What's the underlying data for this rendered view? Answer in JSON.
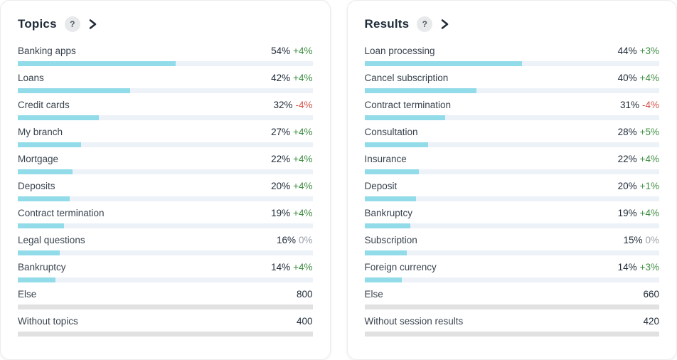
{
  "colors": {
    "title_text": "#1f2b38",
    "label_text": "#39434e",
    "value_text": "#1f2b38",
    "positive": "#3f8e43",
    "negative": "#d5544a",
    "neutral": "#9aa1a8",
    "bar_fill": "#92dbe9",
    "bar_track": "#edf2f9",
    "bar_gray": "#e1e1e1",
    "help_bg": "#e7e9eb",
    "help_text": "#555b61",
    "card_bg": "#ffffff",
    "card_border": "#ececec"
  },
  "icons": {
    "help": "?",
    "chevron_right": "chevron-right-icon"
  },
  "panels": [
    {
      "title": "Topics",
      "help_label": "?",
      "items": [
        {
          "label": "Banking apps",
          "value": "54%",
          "change": "+4%",
          "bar": 53.5
        },
        {
          "label": "Loans",
          "value": "42%",
          "change": "+4%",
          "bar": 38.0
        },
        {
          "label": "Credit cards",
          "value": "32%",
          "change": "-4%",
          "bar": 27.5
        },
        {
          "label": "My branch",
          "value": "27%",
          "change": "+4%",
          "bar": 21.5
        },
        {
          "label": "Mortgage",
          "value": "22%",
          "change": "+4%",
          "bar": 18.5
        },
        {
          "label": "Deposits",
          "value": "20%",
          "change": "+4%",
          "bar": 17.5
        },
        {
          "label": "Contract termination",
          "value": "19%",
          "change": "+4%",
          "bar": 15.6
        },
        {
          "label": "Legal questions",
          "value": "16%",
          "change": "0%",
          "bar": 14.3
        },
        {
          "label": "Bankruptcy",
          "value": "14%",
          "change": "+4%",
          "bar": 12.7
        },
        {
          "label": "Else",
          "value": "800",
          "change": "",
          "bar": 100,
          "kind": "gray"
        },
        {
          "label": "Without topics",
          "value": "400",
          "change": "",
          "bar": 100,
          "kind": "gray"
        }
      ]
    },
    {
      "title": "Results",
      "help_label": "?",
      "items": [
        {
          "label": "Loan processing",
          "value": "44%",
          "change": "+3%",
          "bar": 53.5
        },
        {
          "label": "Cancel subscription",
          "value": "40%",
          "change": "+4%",
          "bar": 38.0
        },
        {
          "label": "Contract termination",
          "value": "31%",
          "change": "-4%",
          "bar": 27.5
        },
        {
          "label": "Consultation",
          "value": "28%",
          "change": "+5%",
          "bar": 21.5
        },
        {
          "label": "Insurance",
          "value": "22%",
          "change": "+4%",
          "bar": 18.5
        },
        {
          "label": "Deposit",
          "value": "20%",
          "change": "+1%",
          "bar": 17.5
        },
        {
          "label": "Bankruptcy",
          "value": "19%",
          "change": "+4%",
          "bar": 15.6
        },
        {
          "label": "Subscription",
          "value": "15%",
          "change": "0%",
          "bar": 14.3
        },
        {
          "label": "Foreign currency",
          "value": "14%",
          "change": "+3%",
          "bar": 12.7
        },
        {
          "label": "Else",
          "value": "660",
          "change": "",
          "bar": 100,
          "kind": "gray"
        },
        {
          "label": "Without session results",
          "value": "420",
          "change": "",
          "bar": 100,
          "kind": "gray"
        }
      ]
    }
  ],
  "chart_data": [
    {
      "type": "bar",
      "title": "Topics",
      "orientation": "horizontal",
      "unit": "%",
      "categories": [
        "Banking apps",
        "Loans",
        "Credit cards",
        "My branch",
        "Mortgage",
        "Deposits",
        "Contract termination",
        "Legal questions",
        "Bankruptcy"
      ],
      "values": [
        54,
        42,
        32,
        27,
        22,
        20,
        19,
        16,
        14
      ],
      "changes": [
        "+4%",
        "+4%",
        "-4%",
        "+4%",
        "+4%",
        "+4%",
        "+4%",
        "0%",
        "+4%"
      ],
      "totals": [
        {
          "label": "Else",
          "value": 800
        },
        {
          "label": "Without topics",
          "value": 400
        }
      ]
    },
    {
      "type": "bar",
      "title": "Results",
      "orientation": "horizontal",
      "unit": "%",
      "categories": [
        "Loan processing",
        "Cancel subscription",
        "Contract termination",
        "Consultation",
        "Insurance",
        "Deposit",
        "Bankruptcy",
        "Subscription",
        "Foreign currency"
      ],
      "values": [
        44,
        40,
        31,
        28,
        22,
        20,
        19,
        15,
        14
      ],
      "changes": [
        "+3%",
        "+4%",
        "-4%",
        "+5%",
        "+4%",
        "+1%",
        "+4%",
        "0%",
        "+3%"
      ],
      "totals": [
        {
          "label": "Else",
          "value": 660
        },
        {
          "label": "Without session results",
          "value": 420
        }
      ]
    }
  ]
}
